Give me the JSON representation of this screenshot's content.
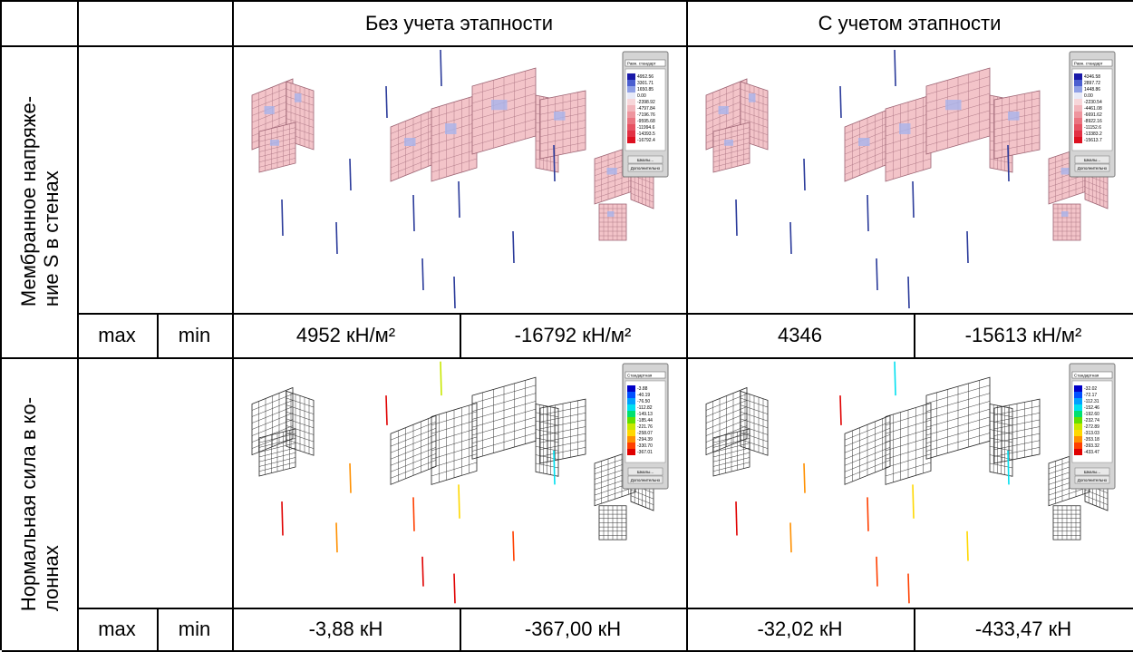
{
  "header": {
    "col_a": "Без учета этапности",
    "col_b": "С учетом этапности"
  },
  "rows": [
    {
      "label": [
        "Мембранное напряже-",
        "ние S в стенах"
      ],
      "max_label": "max",
      "min_label": "min",
      "values": [
        "4952 кН/м²",
        "-16792 кН/м²",
        "4346",
        "-15613 кН/м²"
      ],
      "legends": [
        {
          "scale": "Равн. стандарт",
          "items": [
            "4952.56",
            "3301.71",
            "1650.85",
            "0.00",
            "-2398.92",
            "-4797.84",
            "-7196.76",
            "-9595.68",
            "-11994.6",
            "-14393.5",
            "-16792.4"
          ],
          "buttons": [
            "Шкалы...",
            "Дополнительно"
          ]
        },
        {
          "scale": "Равн. стандарт",
          "items": [
            "4346.58",
            "2897.72",
            "1448.86",
            "0.00",
            "-2230.54",
            "-4461.08",
            "-6691.62",
            "-8922.16",
            "-11152.6",
            "-13383.2",
            "-15613.7"
          ],
          "buttons": [
            "Шкалы...",
            "Дополнительно"
          ]
        }
      ]
    },
    {
      "label": [
        "Нормальная сила в ко-",
        "лоннах"
      ],
      "max_label": "max",
      "min_label": "min",
      "values": [
        "-3,88 кН",
        "-367,00 кН",
        "-32,02 кН",
        "-433,47 кН"
      ],
      "legends": [
        {
          "scale": "Стандартная",
          "items": [
            "-3.88",
            "-40.19",
            "-76.50",
            "-112.82",
            "-149.13",
            "-185.44",
            "-221.76",
            "-258.07",
            "-294.39",
            "-330.70",
            "-367.01"
          ],
          "buttons": [
            "Шкалы...",
            "Дополнительно"
          ]
        },
        {
          "scale": "Стандартная",
          "items": [
            "-32.02",
            "-72.17",
            "-112.31",
            "-152.46",
            "-192.60",
            "-232.74",
            "-272.89",
            "-313.03",
            "-353.18",
            "-393.32",
            "-433.47"
          ],
          "buttons": [
            "Шкалы...",
            "Дополнительно"
          ]
        }
      ]
    }
  ]
}
